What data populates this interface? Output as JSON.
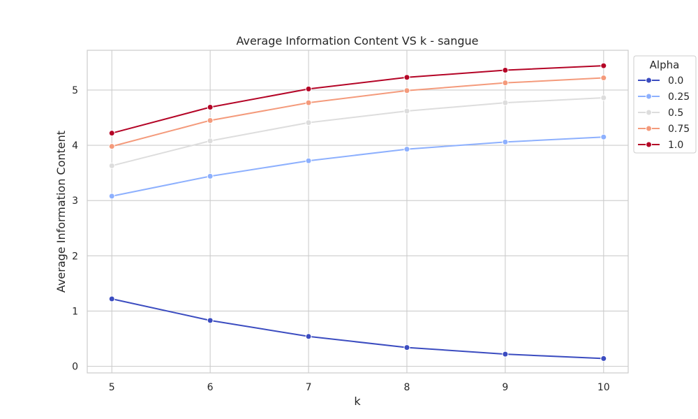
{
  "chart_data": {
    "type": "line",
    "title": "Average Information Content VS k - sangue",
    "xlabel": "k",
    "ylabel": "Average Information Content",
    "x": [
      5,
      6,
      7,
      8,
      9,
      10
    ],
    "xticks": [
      "5",
      "6",
      "7",
      "8",
      "9",
      "10"
    ],
    "yticks": [
      "0",
      "1",
      "2",
      "3",
      "4",
      "5"
    ],
    "xlim": [
      4.75,
      10.25
    ],
    "ylim": [
      -0.12,
      5.72
    ],
    "grid": true,
    "legend": {
      "title": "Alpha",
      "placement": "outside-top-right"
    },
    "series": [
      {
        "name": "0.0",
        "color": "#3b4cc0",
        "values": [
          1.22,
          0.83,
          0.54,
          0.34,
          0.22,
          0.14
        ]
      },
      {
        "name": "0.25",
        "color": "#8db0fe",
        "values": [
          3.08,
          3.44,
          3.72,
          3.93,
          4.06,
          4.15
        ]
      },
      {
        "name": "0.5",
        "color": "#dddddd",
        "values": [
          3.63,
          4.08,
          4.41,
          4.62,
          4.77,
          4.86
        ]
      },
      {
        "name": "0.75",
        "color": "#f49a7b",
        "values": [
          3.98,
          4.45,
          4.77,
          4.99,
          5.13,
          5.22
        ]
      },
      {
        "name": "1.0",
        "color": "#b40426",
        "values": [
          4.22,
          4.69,
          5.02,
          5.23,
          5.36,
          5.44
        ]
      }
    ]
  }
}
